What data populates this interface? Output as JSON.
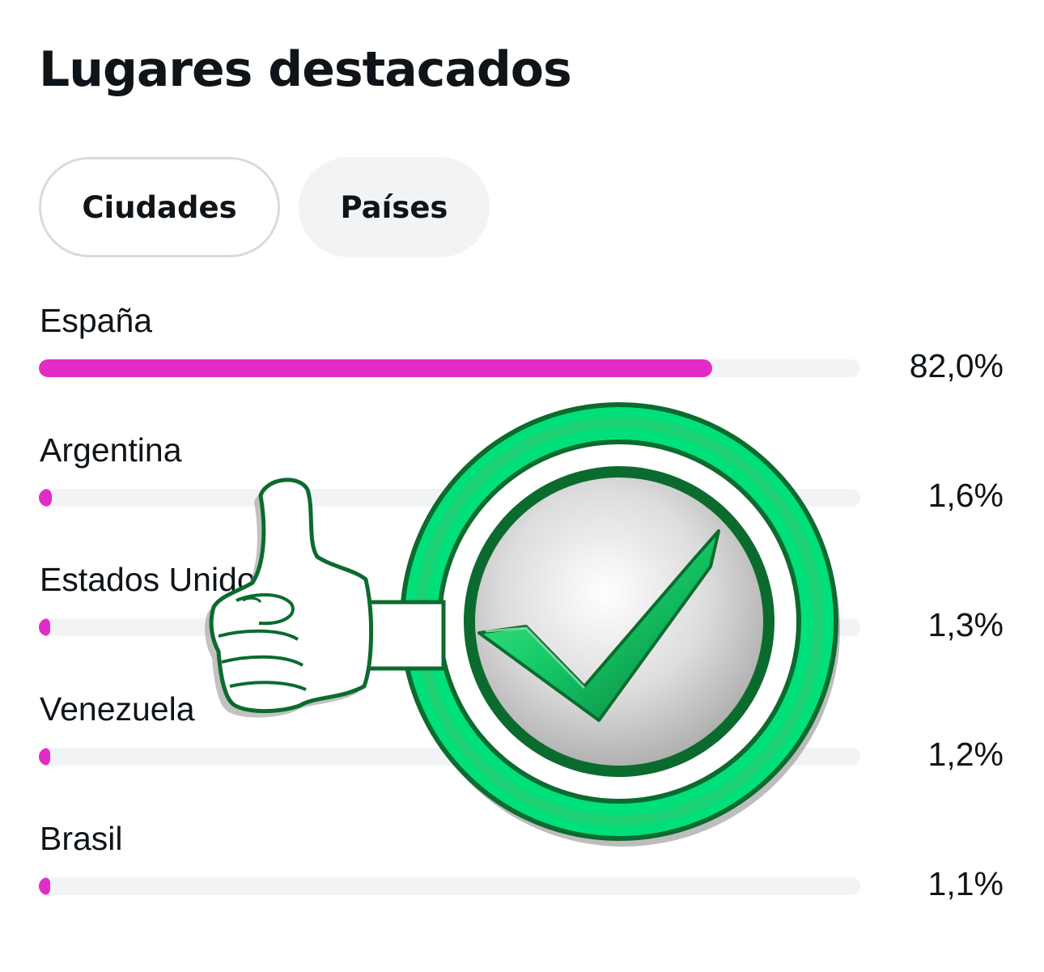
{
  "header": {
    "title": "Lugares destacados"
  },
  "tabs": [
    {
      "label": "Ciudades",
      "selected": false
    },
    {
      "label": "Países",
      "selected": true
    }
  ],
  "locations": [
    {
      "name": "España",
      "percent_label": "82,0%",
      "percent": 82.0
    },
    {
      "name": "Argentina",
      "percent_label": "1,6%",
      "percent": 1.6
    },
    {
      "name": "Estados Unidos",
      "percent_label": "1,3%",
      "percent": 1.3
    },
    {
      "name": "Venezuela",
      "percent_label": "1,2%",
      "percent": 1.2
    },
    {
      "name": "Brasil",
      "percent_label": "1,1%",
      "percent": 1.1
    }
  ],
  "overlay": {
    "icons": [
      "thumbs-up-icon",
      "check-badge-icon"
    ]
  },
  "colors": {
    "bar_fill": "#e22cc8",
    "bar_track": "#f2f3f5",
    "badge_green": "#00e07a",
    "badge_dark_green": "#0b6b2e"
  }
}
